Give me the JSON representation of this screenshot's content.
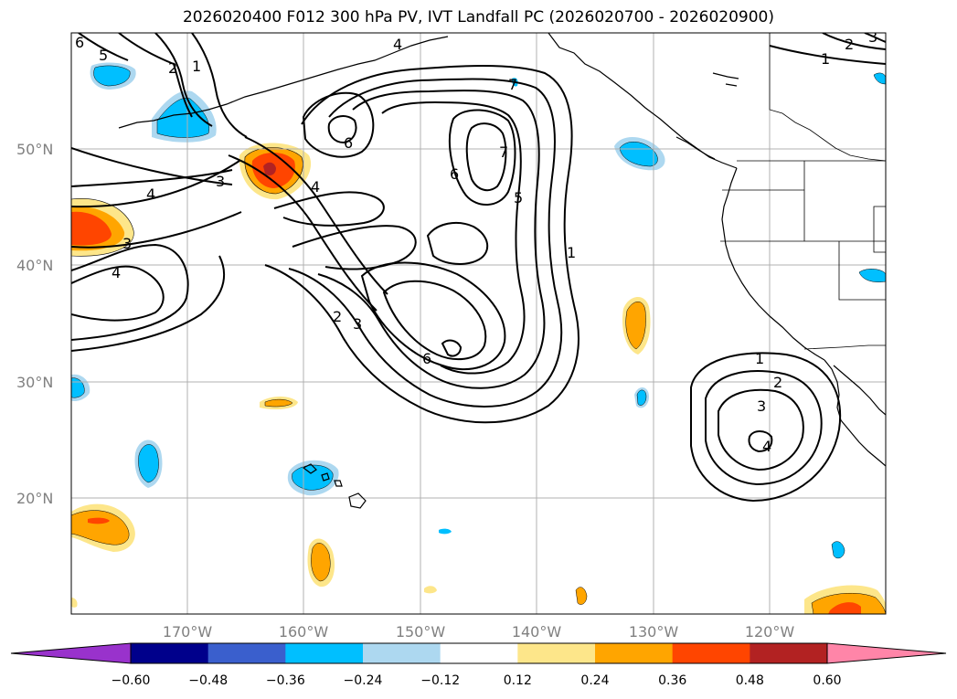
{
  "title": "2026020400 F012 300 hPa PV, IVT Landfall PC (2026020700 - 2026020900)",
  "latitude_labels": [
    "50°N",
    "40°N",
    "30°N",
    "20°N"
  ],
  "longitude_labels": [
    "170°W",
    "160°W",
    "150°W",
    "140°W",
    "130°W",
    "120°W"
  ],
  "contour_labels": {
    "west_jet": [
      "6",
      "5",
      "2",
      "1",
      "4",
      "3",
      "3",
      "4"
    ],
    "central_trough": [
      "6",
      "4",
      "6",
      "7",
      "5",
      "2",
      "3",
      "6",
      "4",
      "7",
      "1"
    ],
    "northeast": [
      "2",
      "3",
      "1"
    ],
    "subtropical_high": [
      "1",
      "2",
      "3",
      "4"
    ]
  },
  "colorbar": {
    "ticks": [
      "−0.60",
      "−0.48",
      "−0.36",
      "−0.24",
      "−0.12",
      "0.12",
      "0.24",
      "0.36",
      "0.48",
      "0.60"
    ],
    "colors": [
      "#9932cc",
      "#00008b",
      "#3a5fcd",
      "#00bfff",
      "#add8f0",
      "#ffffff",
      "#fde68a",
      "#ffa500",
      "#ff4500",
      "#b22222",
      "#ff85a8"
    ]
  },
  "fill_colors": {
    "light_orange": "#fde68a",
    "orange": "#ffa500",
    "red_orange": "#ff4500",
    "dark_red": "#b22222",
    "light_blue": "#add8f0",
    "blue": "#00bfff"
  }
}
